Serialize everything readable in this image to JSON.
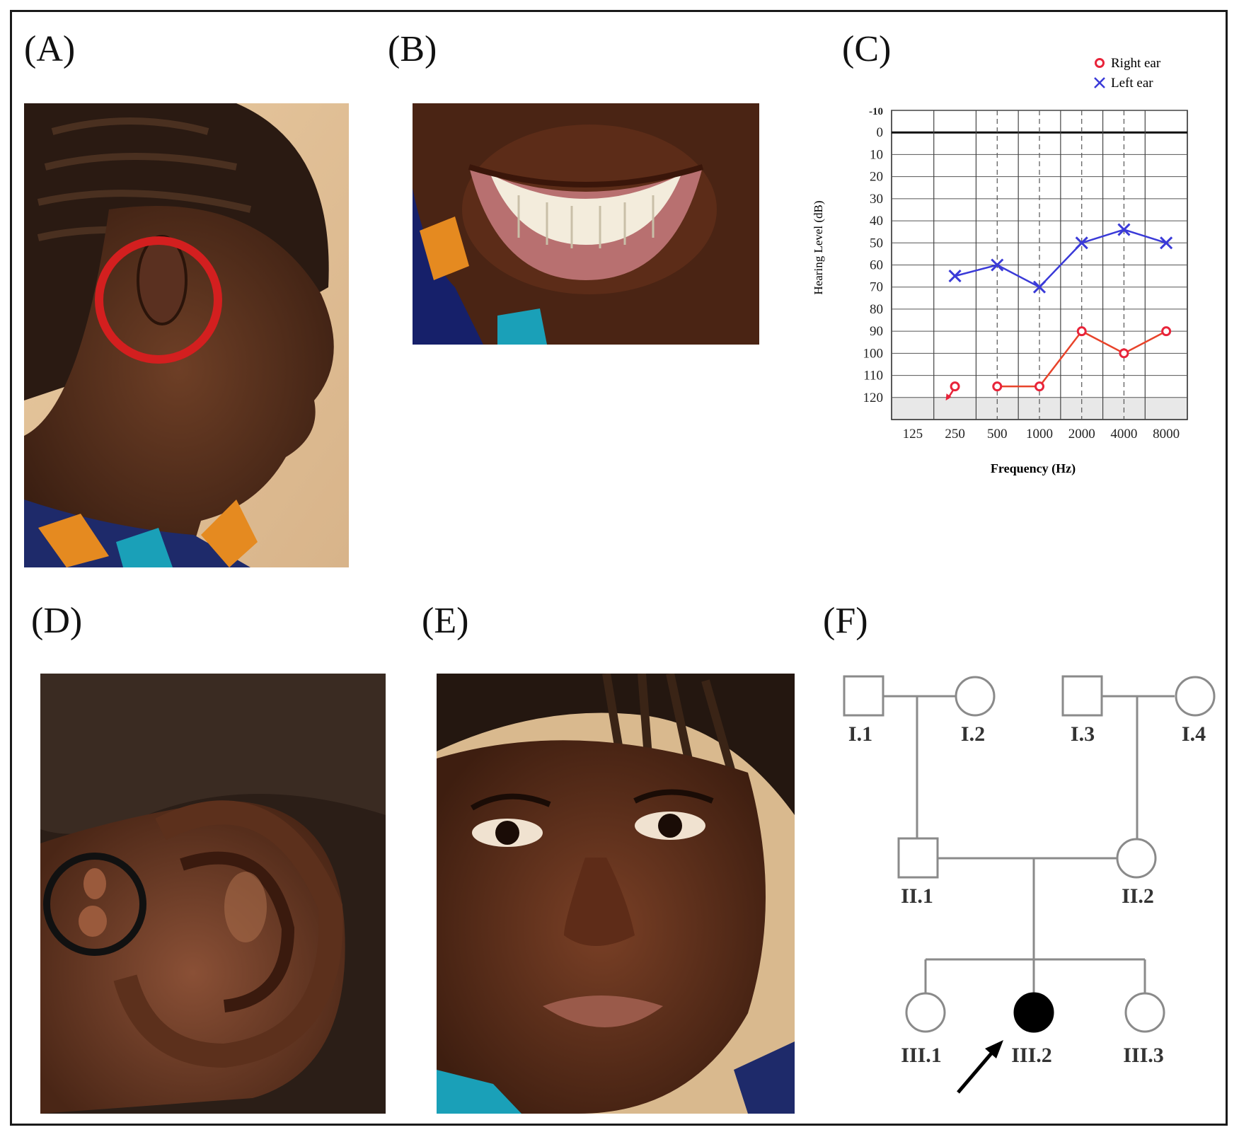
{
  "figure": {
    "panels": [
      {
        "id": "A",
        "label": "(A)"
      },
      {
        "id": "B",
        "label": "(B)"
      },
      {
        "id": "C",
        "label": "(C)"
      },
      {
        "id": "D",
        "label": "(D)"
      },
      {
        "id": "E",
        "label": "(E)"
      },
      {
        "id": "F",
        "label": "(F)"
      }
    ],
    "photos": {
      "A": "side-profile-photo-ear-circled",
      "B": "smile-teeth-photo",
      "D": "ear-closeup-photo-tag-circled",
      "E": "face-frontal-photo"
    },
    "highlight_colors": {
      "A_circle": "#d31f1f",
      "D_circle": "#111111"
    }
  },
  "chart_data": {
    "type": "line",
    "title": "",
    "xlabel": "Frequency (Hz)",
    "ylabel": "Hearing Level (dB)",
    "x_categories": [
      "125",
      "250",
      "500",
      "1000",
      "2000",
      "4000",
      "8000"
    ],
    "y_ticks": [
      "-10",
      "0",
      "10",
      "20",
      "30",
      "40",
      "50",
      "60",
      "70",
      "80",
      "90",
      "100",
      "110",
      "120"
    ],
    "ylim": [
      -10,
      130
    ],
    "y_inverted": true,
    "grid": true,
    "legend_position": "top-right",
    "series": [
      {
        "name": "Right ear",
        "marker": "circle",
        "color": "#e8243a",
        "line_color": "#e8432a",
        "points": [
          {
            "x": "250",
            "y": 115,
            "no_response": true
          },
          {
            "x": "500",
            "y": 115
          },
          {
            "x": "1000",
            "y": 115
          },
          {
            "x": "2000",
            "y": 90
          },
          {
            "x": "4000",
            "y": 100
          },
          {
            "x": "8000",
            "y": 90
          }
        ]
      },
      {
        "name": "Left ear",
        "marker": "x",
        "color": "#3a3ad8",
        "line_color": "#3a3ad8",
        "points": [
          {
            "x": "250",
            "y": 65
          },
          {
            "x": "500",
            "y": 60
          },
          {
            "x": "1000",
            "y": 70
          },
          {
            "x": "2000",
            "y": 50
          },
          {
            "x": "4000",
            "y": 44
          },
          {
            "x": "8000",
            "y": 50
          }
        ]
      }
    ]
  },
  "pedigree": {
    "individuals": [
      {
        "id": "I.1",
        "label": "I.1",
        "sex": "male",
        "affected": false
      },
      {
        "id": "I.2",
        "label": "I.2",
        "sex": "female",
        "affected": false
      },
      {
        "id": "I.3",
        "label": "I.3",
        "sex": "male",
        "affected": false
      },
      {
        "id": "I.4",
        "label": "I.4",
        "sex": "female",
        "affected": false
      },
      {
        "id": "II.1",
        "label": "II.1",
        "sex": "male",
        "affected": false
      },
      {
        "id": "II.2",
        "label": "II.2",
        "sex": "female",
        "affected": false
      },
      {
        "id": "III.1",
        "label": "III.1",
        "sex": "female",
        "affected": false
      },
      {
        "id": "III.2",
        "label": "III.2",
        "sex": "female",
        "affected": true,
        "proband": true
      },
      {
        "id": "III.3",
        "label": "III.3",
        "sex": "female",
        "affected": false
      }
    ]
  }
}
